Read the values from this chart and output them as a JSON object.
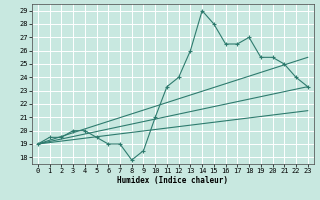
{
  "xlabel": "Humidex (Indice chaleur)",
  "bg_color": "#c8e8e0",
  "grid_color": "#ffffff",
  "line_color": "#2e7b6e",
  "xlim": [
    -0.5,
    23.5
  ],
  "ylim": [
    17.5,
    29.5
  ],
  "xticks": [
    0,
    1,
    2,
    3,
    4,
    5,
    6,
    7,
    8,
    9,
    10,
    11,
    12,
    13,
    14,
    15,
    16,
    17,
    18,
    19,
    20,
    21,
    22,
    23
  ],
  "yticks": [
    18,
    19,
    20,
    21,
    22,
    23,
    24,
    25,
    26,
    27,
    28,
    29
  ],
  "main_line_x": [
    0,
    1,
    2,
    3,
    4,
    5,
    6,
    7,
    8,
    9,
    10,
    11,
    12,
    13,
    14,
    15,
    16,
    17,
    18,
    19,
    20,
    21,
    22,
    23
  ],
  "main_line_y": [
    19,
    19.5,
    19.5,
    20,
    20,
    19.5,
    19,
    19,
    17.8,
    18.5,
    21,
    23.3,
    24,
    26,
    29,
    28,
    26.5,
    26.5,
    27,
    25.5,
    25.5,
    25,
    24,
    23.3
  ],
  "line2_x": [
    0,
    23
  ],
  "line2_y": [
    19,
    23.3
  ],
  "line3_x": [
    0,
    23
  ],
  "line3_y": [
    19,
    25.5
  ],
  "line4_x": [
    0,
    23
  ],
  "line4_y": [
    19,
    21.5
  ]
}
